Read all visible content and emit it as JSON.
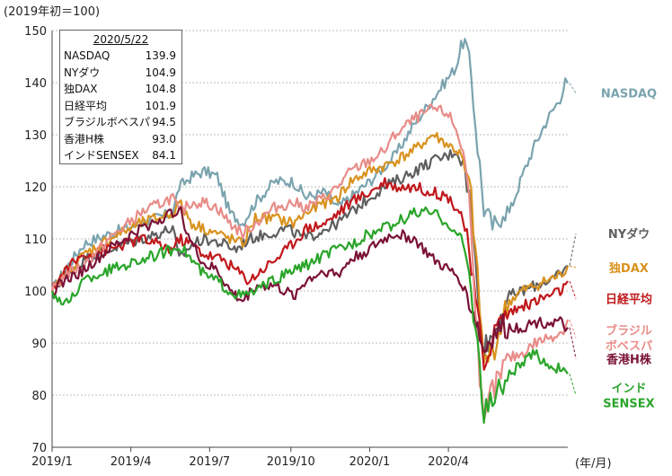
{
  "chart_data": {
    "type": "line",
    "ylabel": "(2019年初＝100)",
    "xlabel": "(年/月)",
    "ylim": [
      70,
      150
    ],
    "yticks": [
      70,
      80,
      90,
      100,
      110,
      120,
      130,
      140,
      150
    ],
    "xticks": [
      "2019/1",
      "2019/4",
      "2019/7",
      "2019/10",
      "2020/1",
      "2020/4"
    ],
    "grid": true,
    "legend_box": {
      "title": "2020/5/22",
      "rows": [
        {
          "name": "NASDAQ",
          "value": "139.9"
        },
        {
          "name": "NYダウ",
          "value": "104.9"
        },
        {
          "name": "独DAX",
          "value": "104.8"
        },
        {
          "name": "日経平均",
          "value": "101.9"
        },
        {
          "name": "ブラジルボベスパ",
          "value": "94.5"
        },
        {
          "name": "香港H株",
          "value": "93.0"
        },
        {
          "name": "インドSENSEX",
          "value": "84.1"
        }
      ]
    },
    "series": [
      {
        "name": "NASDAQ",
        "label": "NASDAQ",
        "color": "#7aa3ae",
        "label_y": 138,
        "points": [
          [
            0,
            100
          ],
          [
            10,
            104
          ],
          [
            25,
            109
          ],
          [
            45,
            111
          ],
          [
            70,
            113
          ],
          [
            95,
            115
          ],
          [
            100,
            120
          ],
          [
            110,
            122
          ],
          [
            120,
            123
          ],
          [
            130,
            122
          ],
          [
            140,
            115
          ],
          [
            150,
            113
          ],
          [
            160,
            117
          ],
          [
            175,
            121
          ],
          [
            190,
            121
          ],
          [
            200,
            118
          ],
          [
            215,
            119
          ],
          [
            225,
            116
          ],
          [
            235,
            118
          ],
          [
            250,
            121
          ],
          [
            262,
            124
          ],
          [
            270,
            126
          ],
          [
            285,
            132
          ],
          [
            300,
            137
          ],
          [
            312,
            141
          ],
          [
            318,
            143
          ],
          [
            322,
            147
          ],
          [
            325,
            148
          ],
          [
            330,
            141
          ],
          [
            335,
            128
          ],
          [
            340,
            116
          ],
          [
            345,
            113
          ],
          [
            350,
            112
          ],
          [
            355,
            116
          ],
          [
            360,
            115
          ],
          [
            370,
            122
          ],
          [
            380,
            128
          ],
          [
            390,
            133
          ],
          [
            400,
            137
          ],
          [
            404,
            140
          ],
          [
            406,
            139.9
          ]
        ]
      },
      {
        "name": "NYダウ",
        "label": "NYダウ",
        "color": "#5e5e5e",
        "label_y": 111,
        "points": [
          [
            0,
            100
          ],
          [
            10,
            103
          ],
          [
            25,
            106
          ],
          [
            45,
            108
          ],
          [
            70,
            110
          ],
          [
            95,
            112
          ],
          [
            100,
            106
          ],
          [
            110,
            109
          ],
          [
            120,
            110
          ],
          [
            135,
            109
          ],
          [
            145,
            108
          ],
          [
            155,
            110
          ],
          [
            170,
            111
          ],
          [
            185,
            112
          ],
          [
            200,
            110
          ],
          [
            215,
            112
          ],
          [
            225,
            113
          ],
          [
            235,
            115
          ],
          [
            250,
            118
          ],
          [
            262,
            120
          ],
          [
            270,
            121
          ],
          [
            285,
            123
          ],
          [
            300,
            125
          ],
          [
            312,
            126
          ],
          [
            318,
            127
          ],
          [
            322,
            125
          ],
          [
            325,
            124
          ],
          [
            330,
            115
          ],
          [
            335,
            100
          ],
          [
            340,
            89
          ],
          [
            345,
            91
          ],
          [
            350,
            93
          ],
          [
            355,
            97
          ],
          [
            360,
            99
          ],
          [
            370,
            100
          ],
          [
            380,
            101
          ],
          [
            390,
            102
          ],
          [
            400,
            103
          ],
          [
            404,
            104
          ],
          [
            406,
            104.9
          ]
        ]
      },
      {
        "name": "独DAX",
        "label": "独DAX",
        "color": "#d9921e",
        "label_y": 104.5,
        "points": [
          [
            0,
            100
          ],
          [
            10,
            103
          ],
          [
            25,
            107
          ],
          [
            45,
            110
          ],
          [
            70,
            113
          ],
          [
            95,
            115
          ],
          [
            100,
            117
          ],
          [
            110,
            113
          ],
          [
            120,
            112
          ],
          [
            130,
            111
          ],
          [
            140,
            110
          ],
          [
            150,
            109
          ],
          [
            160,
            114
          ],
          [
            175,
            114
          ],
          [
            190,
            113
          ],
          [
            200,
            115
          ],
          [
            215,
            117
          ],
          [
            225,
            118
          ],
          [
            235,
            121
          ],
          [
            250,
            123
          ],
          [
            262,
            124
          ],
          [
            270,
            125
          ],
          [
            285,
            127
          ],
          [
            300,
            130
          ],
          [
            312,
            128
          ],
          [
            318,
            127
          ],
          [
            322,
            126
          ],
          [
            325,
            123
          ],
          [
            330,
            118
          ],
          [
            335,
            102
          ],
          [
            340,
            86
          ],
          [
            345,
            88
          ],
          [
            350,
            90
          ],
          [
            355,
            95
          ],
          [
            360,
            98
          ],
          [
            370,
            100
          ],
          [
            380,
            101
          ],
          [
            390,
            102
          ],
          [
            400,
            103
          ],
          [
            404,
            104
          ],
          [
            406,
            104.8
          ]
        ]
      },
      {
        "name": "日経平均",
        "label": "日経平均",
        "color": "#c0181c",
        "label_y": 98.5,
        "points": [
          [
            0,
            100
          ],
          [
            10,
            104
          ],
          [
            25,
            107
          ],
          [
            45,
            108
          ],
          [
            70,
            110
          ],
          [
            95,
            108
          ],
          [
            100,
            110
          ],
          [
            110,
            109
          ],
          [
            120,
            107
          ],
          [
            135,
            106
          ],
          [
            145,
            104
          ],
          [
            155,
            102
          ],
          [
            170,
            105
          ],
          [
            185,
            108
          ],
          [
            200,
            112
          ],
          [
            215,
            113
          ],
          [
            225,
            115
          ],
          [
            235,
            117
          ],
          [
            250,
            119
          ],
          [
            262,
            121
          ],
          [
            270,
            120
          ],
          [
            285,
            120
          ],
          [
            300,
            119
          ],
          [
            312,
            118
          ],
          [
            318,
            116
          ],
          [
            322,
            115
          ],
          [
            325,
            112
          ],
          [
            330,
            104
          ],
          [
            335,
            95
          ],
          [
            340,
            86
          ],
          [
            345,
            90
          ],
          [
            350,
            93
          ],
          [
            355,
            95
          ],
          [
            360,
            96
          ],
          [
            370,
            97
          ],
          [
            380,
            98
          ],
          [
            390,
            99
          ],
          [
            400,
            100
          ],
          [
            404,
            101
          ],
          [
            406,
            101.9
          ]
        ]
      },
      {
        "name": "ブラジルボベスパ",
        "label_lines": [
          "ブラジル",
          "ボベスパ"
        ],
        "color": "#e88c88",
        "label_y": 91,
        "points": [
          [
            0,
            100
          ],
          [
            10,
            103
          ],
          [
            25,
            105
          ],
          [
            45,
            110
          ],
          [
            70,
            115
          ],
          [
            95,
            118
          ],
          [
            100,
            115
          ],
          [
            110,
            117
          ],
          [
            120,
            117
          ],
          [
            130,
            116
          ],
          [
            140,
            113
          ],
          [
            150,
            111
          ],
          [
            160,
            113
          ],
          [
            175,
            116
          ],
          [
            190,
            117
          ],
          [
            200,
            116
          ],
          [
            215,
            118
          ],
          [
            225,
            120
          ],
          [
            235,
            123
          ],
          [
            250,
            125
          ],
          [
            262,
            127
          ],
          [
            270,
            130
          ],
          [
            285,
            133
          ],
          [
            300,
            135
          ],
          [
            312,
            134
          ],
          [
            318,
            131
          ],
          [
            322,
            128
          ],
          [
            325,
            125
          ],
          [
            330,
            113
          ],
          [
            335,
            90
          ],
          [
            340,
            73
          ],
          [
            345,
            80
          ],
          [
            350,
            82
          ],
          [
            355,
            85
          ],
          [
            360,
            87
          ],
          [
            370,
            88
          ],
          [
            380,
            90
          ],
          [
            390,
            91
          ],
          [
            400,
            92
          ],
          [
            404,
            93
          ],
          [
            406,
            94.5
          ]
        ]
      },
      {
        "name": "香港H株",
        "label": "香港H株",
        "color": "#7a1236",
        "label_y": 87,
        "points": [
          [
            0,
            100
          ],
          [
            10,
            102
          ],
          [
            25,
            104
          ],
          [
            45,
            108
          ],
          [
            70,
            112
          ],
          [
            95,
            115
          ],
          [
            100,
            116
          ],
          [
            110,
            109
          ],
          [
            120,
            105
          ],
          [
            130,
            104
          ],
          [
            140,
            100
          ],
          [
            150,
            98
          ],
          [
            160,
            101
          ],
          [
            175,
            101
          ],
          [
            190,
            99
          ],
          [
            200,
            102
          ],
          [
            215,
            104
          ],
          [
            225,
            103
          ],
          [
            235,
            106
          ],
          [
            250,
            108
          ],
          [
            262,
            110
          ],
          [
            270,
            111
          ],
          [
            285,
            110
          ],
          [
            300,
            106
          ],
          [
            312,
            104
          ],
          [
            318,
            103
          ],
          [
            322,
            102
          ],
          [
            325,
            100
          ],
          [
            330,
            97
          ],
          [
            335,
            93
          ],
          [
            340,
            88
          ],
          [
            345,
            91
          ],
          [
            350,
            92
          ],
          [
            355,
            93
          ],
          [
            360,
            93
          ],
          [
            370,
            93
          ],
          [
            380,
            94
          ],
          [
            390,
            94
          ],
          [
            400,
            94
          ],
          [
            404,
            93
          ],
          [
            406,
            93.0
          ]
        ]
      },
      {
        "name": "インドSENSEX",
        "label_lines": [
          "インド",
          "SENSEX"
        ],
        "color": "#2aa52a",
        "label_y": 80,
        "points": [
          [
            0,
            100
          ],
          [
            10,
            97
          ],
          [
            25,
            102
          ],
          [
            45,
            104
          ],
          [
            70,
            106
          ],
          [
            95,
            108
          ],
          [
            100,
            109
          ],
          [
            110,
            106
          ],
          [
            120,
            103
          ],
          [
            130,
            102
          ],
          [
            140,
            100
          ],
          [
            150,
            99
          ],
          [
            160,
            100
          ],
          [
            175,
            102
          ],
          [
            190,
            104
          ],
          [
            200,
            105
          ],
          [
            215,
            107
          ],
          [
            225,
            108
          ],
          [
            235,
            109
          ],
          [
            250,
            111
          ],
          [
            262,
            112
          ],
          [
            270,
            113
          ],
          [
            285,
            115
          ],
          [
            300,
            115
          ],
          [
            312,
            113
          ],
          [
            318,
            111
          ],
          [
            322,
            110
          ],
          [
            325,
            108
          ],
          [
            330,
            100
          ],
          [
            335,
            90
          ],
          [
            340,
            76
          ],
          [
            345,
            79
          ],
          [
            350,
            80
          ],
          [
            355,
            82
          ],
          [
            360,
            84
          ],
          [
            370,
            86
          ],
          [
            380,
            88
          ],
          [
            390,
            86
          ],
          [
            400,
            85
          ],
          [
            404,
            84
          ],
          [
            406,
            84.1
          ]
        ]
      }
    ]
  }
}
